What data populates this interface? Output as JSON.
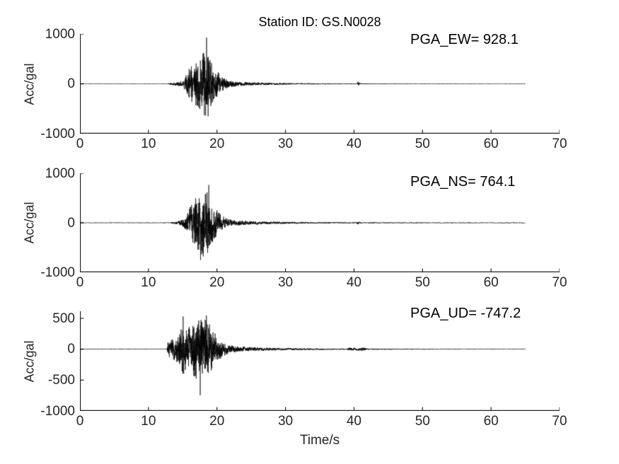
{
  "title": "Station ID: GS.N0028",
  "xlabel": "Time/s",
  "colors": {
    "background": "#ffffff",
    "trace": "#000000",
    "axis": "#262626",
    "tick_text": "#262626",
    "annotation_text": "#000000"
  },
  "chart_data": [
    {
      "type": "line",
      "name": "EW",
      "annotation": "PGA_EW= 928.1",
      "pga": 928.1,
      "pga_time": 18.5,
      "ylabel": "Acc/gal",
      "xlim": [
        0,
        70
      ],
      "ylim": [
        -1000,
        1000
      ],
      "xticks": [
        0,
        10,
        20,
        30,
        40,
        50,
        60,
        70
      ],
      "xtick_labels": [
        "0",
        "10",
        "20",
        "30",
        "40",
        "50",
        "60",
        "70"
      ],
      "yticks": [
        1000,
        0,
        -1000
      ],
      "ytick_labels": [
        "1000",
        "0",
        "-1000"
      ],
      "t_end": 65,
      "seed": 7,
      "envelope": [
        [
          0,
          4
        ],
        [
          12.8,
          4
        ],
        [
          13.0,
          12
        ],
        [
          13.6,
          25
        ],
        [
          14.2,
          35
        ],
        [
          14.8,
          60
        ],
        [
          15.3,
          120
        ],
        [
          15.8,
          260
        ],
        [
          16.2,
          380
        ],
        [
          16.6,
          320
        ],
        [
          17.0,
          420
        ],
        [
          17.4,
          480
        ],
        [
          17.8,
          560
        ],
        [
          18.2,
          650
        ],
        [
          18.5,
          780
        ],
        [
          18.8,
          520
        ],
        [
          19.2,
          420
        ],
        [
          19.6,
          320
        ],
        [
          20.0,
          260
        ],
        [
          20.5,
          170
        ],
        [
          21.0,
          120
        ],
        [
          21.5,
          85
        ],
        [
          22.0,
          60
        ],
        [
          23,
          45
        ],
        [
          24,
          35
        ],
        [
          26,
          26
        ],
        [
          28,
          20
        ],
        [
          30,
          15
        ],
        [
          33,
          11
        ],
        [
          36,
          9
        ],
        [
          40,
          7
        ],
        [
          40.4,
          7
        ],
        [
          40.6,
          42
        ],
        [
          40.9,
          8
        ],
        [
          44,
          6
        ],
        [
          50,
          5
        ],
        [
          58,
          4
        ],
        [
          65,
          4
        ]
      ],
      "peaks": [
        [
          16.9,
          -430
        ],
        [
          18.47,
          928
        ],
        [
          18.7,
          -650
        ]
      ]
    },
    {
      "type": "line",
      "name": "NS",
      "annotation": "PGA_NS= 764.1",
      "pga": 764.1,
      "pga_time": 18.8,
      "ylabel": "Acc/gal",
      "xlim": [
        0,
        70
      ],
      "ylim": [
        -1000,
        1000
      ],
      "xticks": [
        0,
        10,
        20,
        30,
        40,
        50,
        60,
        70
      ],
      "xtick_labels": [
        "0",
        "10",
        "20",
        "30",
        "40",
        "50",
        "60",
        "70"
      ],
      "yticks": [
        1000,
        0,
        -1000
      ],
      "ytick_labels": [
        "1000",
        "0",
        "-1000"
      ],
      "t_end": 65,
      "seed": 21,
      "envelope": [
        [
          0,
          4
        ],
        [
          12.9,
          4
        ],
        [
          13.2,
          10
        ],
        [
          13.8,
          20
        ],
        [
          14.3,
          30
        ],
        [
          14.8,
          55
        ],
        [
          15.3,
          110
        ],
        [
          15.8,
          230
        ],
        [
          16.2,
          340
        ],
        [
          16.6,
          420
        ],
        [
          17.0,
          520
        ],
        [
          17.4,
          600
        ],
        [
          17.8,
          640
        ],
        [
          18.2,
          560
        ],
        [
          18.6,
          620
        ],
        [
          18.9,
          500
        ],
        [
          19.3,
          380
        ],
        [
          19.7,
          300
        ],
        [
          20.2,
          220
        ],
        [
          20.7,
          150
        ],
        [
          21.2,
          100
        ],
        [
          21.8,
          70
        ],
        [
          22.5,
          55
        ],
        [
          23.5,
          45
        ],
        [
          25,
          35
        ],
        [
          27,
          28
        ],
        [
          29,
          22
        ],
        [
          32,
          16
        ],
        [
          35,
          12
        ],
        [
          38,
          10
        ],
        [
          40.3,
          9
        ],
        [
          40.6,
          38
        ],
        [
          40.9,
          9
        ],
        [
          44,
          7
        ],
        [
          50,
          6
        ],
        [
          58,
          5
        ],
        [
          65,
          5
        ]
      ],
      "peaks": [
        [
          17.6,
          -750
        ],
        [
          18.0,
          -680
        ],
        [
          18.8,
          764
        ]
      ]
    },
    {
      "type": "line",
      "name": "UD",
      "annotation": "PGA_UD= -747.2",
      "pga": -747.2,
      "pga_time": 17.55,
      "ylabel": "Acc/gal",
      "xlim": [
        0,
        70
      ],
      "ylim": [
        -1000,
        615
      ],
      "xticks": [
        0,
        10,
        20,
        30,
        40,
        50,
        60,
        70
      ],
      "xtick_labels": [
        "0",
        "10",
        "20",
        "30",
        "40",
        "50",
        "60",
        "70"
      ],
      "yticks": [
        500,
        0,
        -500,
        -1000
      ],
      "ytick_labels": [
        "500",
        "0",
        "-500",
        "-1000"
      ],
      "t_end": 65,
      "seed": 35,
      "envelope": [
        [
          0,
          4
        ],
        [
          12.7,
          4
        ],
        [
          12.85,
          110
        ],
        [
          13.2,
          150
        ],
        [
          13.8,
          180
        ],
        [
          14.3,
          230
        ],
        [
          14.8,
          330
        ],
        [
          15.1,
          420
        ],
        [
          15.5,
          300
        ],
        [
          16.0,
          360
        ],
        [
          16.5,
          420
        ],
        [
          17.0,
          480
        ],
        [
          17.4,
          560
        ],
        [
          17.8,
          500
        ],
        [
          18.2,
          480
        ],
        [
          18.6,
          460
        ],
        [
          19.0,
          380
        ],
        [
          19.4,
          300
        ],
        [
          19.9,
          230
        ],
        [
          20.4,
          170
        ],
        [
          21.0,
          110
        ],
        [
          21.6,
          75
        ],
        [
          22.3,
          55
        ],
        [
          23.5,
          40
        ],
        [
          25,
          30
        ],
        [
          27,
          24
        ],
        [
          30,
          17
        ],
        [
          33,
          13
        ],
        [
          36,
          10
        ],
        [
          39,
          8
        ],
        [
          39.3,
          28
        ],
        [
          40.2,
          20
        ],
        [
          41.5,
          24
        ],
        [
          42,
          10
        ],
        [
          45,
          7
        ],
        [
          50,
          5
        ],
        [
          58,
          4
        ],
        [
          65,
          4
        ]
      ],
      "peaks": [
        [
          15.05,
          530
        ],
        [
          17.55,
          -747
        ],
        [
          18.45,
          545
        ]
      ]
    }
  ]
}
